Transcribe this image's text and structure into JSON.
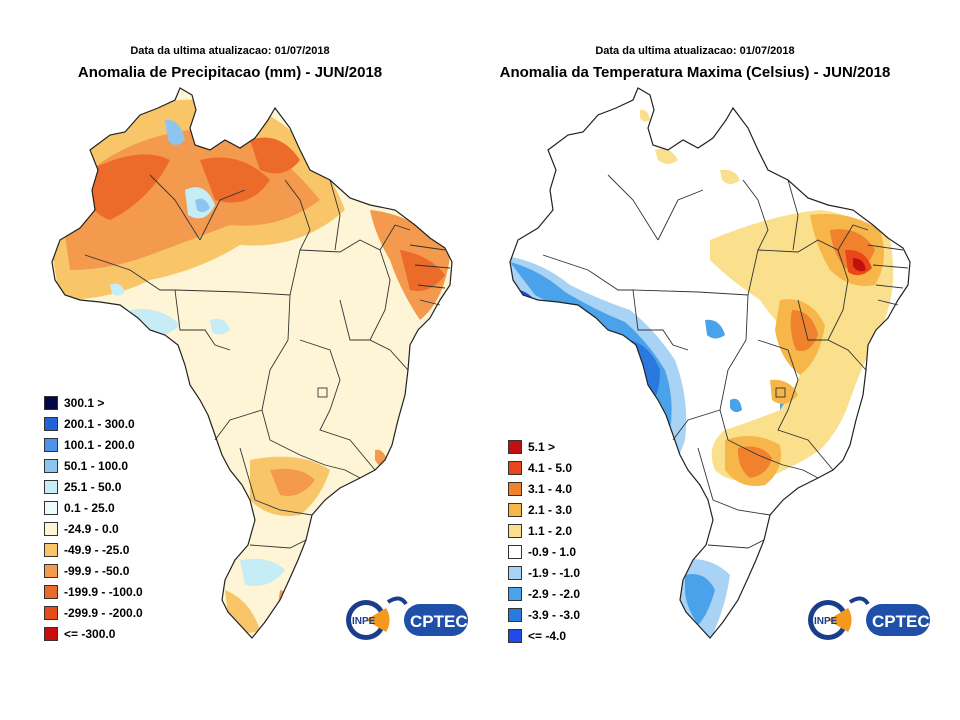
{
  "maps": [
    {
      "subtitle": "Data da ultima atualizacao: 01/07/2018",
      "title": "Anomalia de Precipitacao (mm) - JUN/2018",
      "legend": [
        {
          "label": "300.1 >",
          "color": "#000a4a"
        },
        {
          "label": "200.1 - 300.0",
          "color": "#1f63d6"
        },
        {
          "label": "100.1 - 200.0",
          "color": "#4a93e8"
        },
        {
          "label": "50.1 - 100.0",
          "color": "#8ec4f0"
        },
        {
          "label": "25.1 - 50.0",
          "color": "#c6ecf6"
        },
        {
          "label": "0.1 - 25.0",
          "color": "#ecfafc"
        },
        {
          "label": "-24.9 - 0.0",
          "color": "#fdf5d6"
        },
        {
          "label": "-49.9 - -25.0",
          "color": "#f8c668"
        },
        {
          "label": "-99.9 - -50.0",
          "color": "#f39a4e"
        },
        {
          "label": "-199.9 - -100.0",
          "color": "#ec6a2a"
        },
        {
          "label": "-299.9 - -200.0",
          "color": "#e64b1a"
        },
        {
          "label": "<= -300.0",
          "color": "#c90d0d"
        }
      ]
    },
    {
      "subtitle": "Data da ultima atualizacao: 01/07/2018",
      "title": "Anomalia da Temperatura Maxima (Celsius) - JUN/2018",
      "legend": [
        {
          "label": "5.1 >",
          "color": "#c20f0f"
        },
        {
          "label": "4.1 - 5.0",
          "color": "#e9471a"
        },
        {
          "label": "3.1 - 4.0",
          "color": "#f0822e"
        },
        {
          "label": "2.1 - 3.0",
          "color": "#f6b64a"
        },
        {
          "label": "1.1 - 2.0",
          "color": "#fae08c"
        },
        {
          "label": "-0.9 - 1.0",
          "color": "#ffffff"
        },
        {
          "label": "-1.9 - -1.0",
          "color": "#a8d3f4"
        },
        {
          "label": "-2.9 - -2.0",
          "color": "#4aa2ea"
        },
        {
          "label": "-3.9 - -3.0",
          "color": "#2a79df"
        },
        {
          "label": "<= -4.0",
          "color": "#1f4be8"
        }
      ]
    }
  ],
  "logos": {
    "inpe": "INPE",
    "cptec": "CPTEC"
  },
  "icons": {
    "logo": "inpe-cptec-logo-icon"
  }
}
